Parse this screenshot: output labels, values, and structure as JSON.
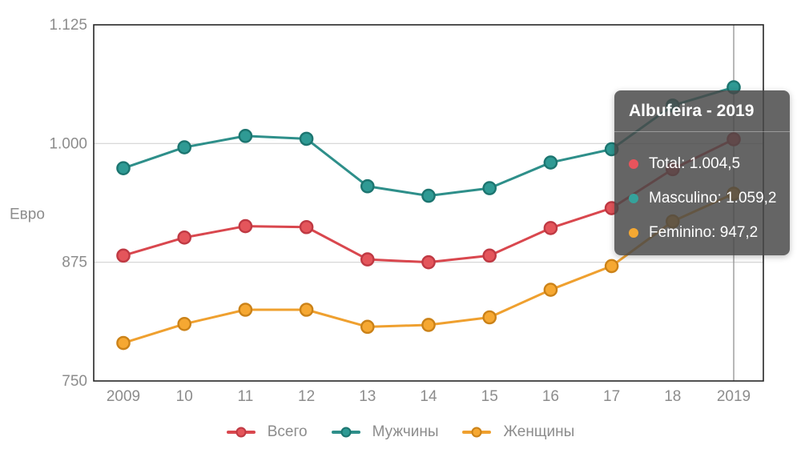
{
  "chart_data": {
    "type": "line",
    "categories": [
      "2009",
      "10",
      "11",
      "12",
      "13",
      "14",
      "15",
      "16",
      "17",
      "18",
      "2019"
    ],
    "series": [
      {
        "name": "Всего",
        "line_color": "#d9474e",
        "marker_fill": "#e4555b",
        "marker_stroke": "#bf3943",
        "values": [
          882,
          901,
          913,
          912,
          878,
          875,
          882,
          911,
          932,
          973,
          1004.5
        ]
      },
      {
        "name": "Мужчины",
        "line_color": "#2e8f8a",
        "marker_fill": "#2f9a94",
        "marker_stroke": "#1c7570",
        "values": [
          974,
          996,
          1008,
          1005,
          955,
          945,
          953,
          980,
          994,
          1040,
          1059.2
        ]
      },
      {
        "name": "Женщины",
        "line_color": "#efa02f",
        "marker_fill": "#f6a832",
        "marker_stroke": "#cb8218",
        "values": [
          790,
          810,
          825,
          825,
          807,
          809,
          817,
          846,
          871,
          918,
          947.2
        ]
      }
    ],
    "ylabel": "Евро",
    "ylim": [
      750,
      1125
    ],
    "y_ticks": [
      {
        "value": 1125,
        "label": "1.125"
      },
      {
        "value": 1000,
        "label": "1.000"
      },
      {
        "value": 875,
        "label": "875"
      },
      {
        "value": 750,
        "label": "750"
      }
    ],
    "grid_values": [
      1000,
      875
    ],
    "grid": "horizontal-only",
    "crosshair_index": 10,
    "legend_position": "bottom"
  },
  "tooltip": {
    "title": "Albufeira - 2019",
    "items": [
      {
        "text": "Total: 1.004,5",
        "color": "#e8545c"
      },
      {
        "text": "Masculino: 1.059,2",
        "color": "#35a29b"
      },
      {
        "text": "Feminino: 947,2",
        "color": "#f5a832"
      }
    ]
  }
}
